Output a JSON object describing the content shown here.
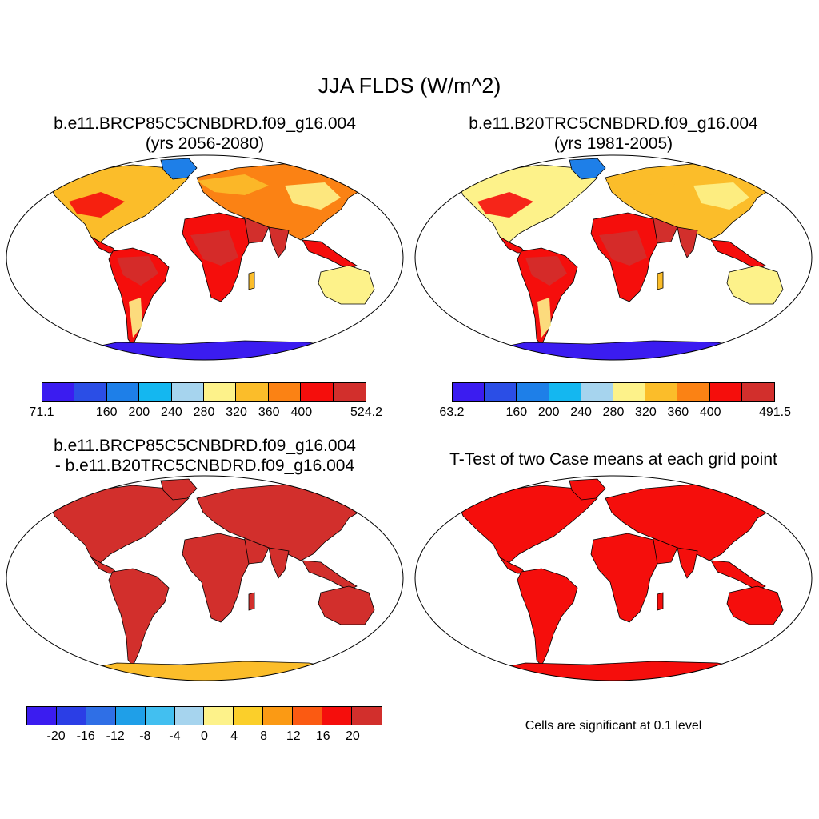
{
  "title": "JJA FLDS (W/m^2)",
  "panels": {
    "top_left": {
      "title_line1": "b.e11.BRCP85C5CNBDRD.f09_g16.004",
      "title_line2": "(yrs 2056-2080)"
    },
    "top_right": {
      "title_line1": "b.e11.B20TRC5CNBDRD.f09_g16.004",
      "title_line2": "(yrs 1981-2005)"
    },
    "bottom_left": {
      "title_line1": "b.e11.BRCP85C5CNBDRD.f09_g16.004",
      "title_line2": "- b.e11.B20TRC5CNBDRD.f09_g16.004"
    },
    "bottom_right": {
      "title_line1": "T-Test of two Case means at each grid point",
      "note": "Cells are significant at 0.1 level"
    }
  },
  "colorbars": {
    "top_left": {
      "colors": [
        "#3b1cf0",
        "#2b4ee6",
        "#1e7fe8",
        "#14b7f0",
        "#a6d4ee",
        "#fdf28a",
        "#fbbd2a",
        "#fb8214",
        "#f50e0c",
        "#d22f2c"
      ],
      "labels": [
        "71.1",
        "160",
        "200",
        "240",
        "280",
        "320",
        "360",
        "400",
        "524.2"
      ]
    },
    "top_right": {
      "colors": [
        "#3b1cf0",
        "#2b4ee6",
        "#1e7fe8",
        "#14b7f0",
        "#a6d4ee",
        "#fdf28a",
        "#fbbd2a",
        "#fb8214",
        "#f50e0c",
        "#d22f2c"
      ],
      "labels": [
        "63.2",
        "160",
        "200",
        "240",
        "280",
        "320",
        "360",
        "400",
        "491.5"
      ]
    },
    "bottom_left": {
      "colors": [
        "#3b1cf0",
        "#2b3ee6",
        "#2f6fe6",
        "#1f9fe8",
        "#42bff0",
        "#a6d4ee",
        "#fdf28a",
        "#fbcf2a",
        "#fb9a14",
        "#fb5a12",
        "#f50e0c",
        "#d22f2c"
      ],
      "labels": [
        "-20",
        "-16",
        "-12",
        "-8",
        "-4",
        "0",
        "4",
        "8",
        "12",
        "16",
        "20"
      ]
    }
  },
  "map_colors": {
    "land_warm": "#fbbd2a",
    "land_hot": "#f50e0c",
    "land_hottest": "#d22f2c",
    "land_mild": "#fdf28a",
    "land_orange": "#fb8214",
    "ice": "#3b1cf0",
    "ice_light": "#1e7fe8",
    "diff_land": "#d22f2c",
    "diff_ant": "#fbbd2a",
    "ttest_land": "#f50e0c"
  }
}
